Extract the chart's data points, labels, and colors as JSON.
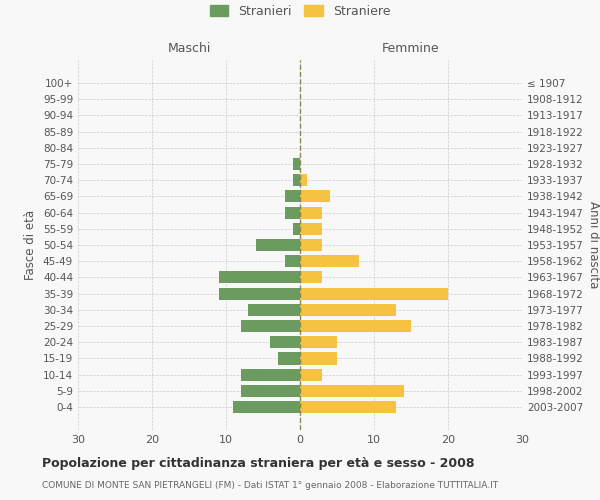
{
  "age_groups": [
    "100+",
    "95-99",
    "90-94",
    "85-89",
    "80-84",
    "75-79",
    "70-74",
    "65-69",
    "60-64",
    "55-59",
    "50-54",
    "45-49",
    "40-44",
    "35-39",
    "30-34",
    "25-29",
    "20-24",
    "15-19",
    "10-14",
    "5-9",
    "0-4"
  ],
  "birth_years": [
    "≤ 1907",
    "1908-1912",
    "1913-1917",
    "1918-1922",
    "1923-1927",
    "1928-1932",
    "1933-1937",
    "1938-1942",
    "1943-1947",
    "1948-1952",
    "1953-1957",
    "1958-1962",
    "1963-1967",
    "1968-1972",
    "1973-1977",
    "1978-1982",
    "1983-1987",
    "1988-1992",
    "1993-1997",
    "1998-2002",
    "2003-2007"
  ],
  "males": [
    0,
    0,
    0,
    0,
    0,
    1,
    1,
    2,
    2,
    1,
    6,
    2,
    11,
    11,
    7,
    8,
    4,
    3,
    8,
    8,
    9
  ],
  "females": [
    0,
    0,
    0,
    0,
    0,
    0,
    1,
    4,
    3,
    3,
    3,
    8,
    3,
    20,
    13,
    15,
    5,
    5,
    3,
    14,
    13
  ],
  "male_color": "#6b9b5e",
  "female_color": "#f5c242",
  "background_color": "#f8f8f8",
  "grid_color": "#cccccc",
  "title": "Popolazione per cittadinanza straniera per età e sesso - 2008",
  "subtitle": "COMUNE DI MONTE SAN PIETRANGELI (FM) - Dati ISTAT 1° gennaio 2008 - Elaborazione TUTTITALIA.IT",
  "legend_male": "Stranieri",
  "legend_female": "Straniere",
  "xlabel_left": "Maschi",
  "xlabel_right": "Femmine",
  "ylabel_left": "Fasce di età",
  "ylabel_right": "Anni di nascita",
  "xlim": 30
}
